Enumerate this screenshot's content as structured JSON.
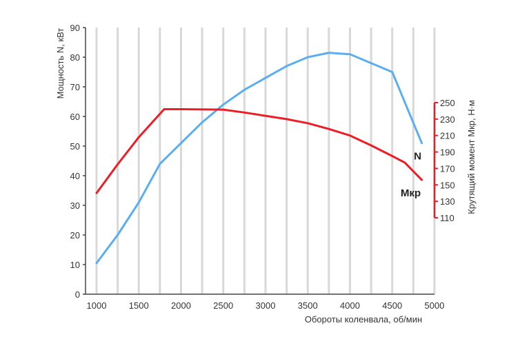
{
  "chart_data": {
    "type": "line",
    "xlabel": "Обороты коленвала, об/мин",
    "ylabel_left": "Мощность N, кВт",
    "ylabel_right": "Крутящий момент Мкр, Н·м",
    "xlim": [
      1000,
      5000
    ],
    "x_ticks": [
      "1000",
      "1500",
      "2000",
      "2500",
      "3000",
      "3500",
      "4000",
      "4500",
      "5000"
    ],
    "ylim_left": [
      0,
      90
    ],
    "y_ticks_left": [
      "0",
      "10",
      "20",
      "30",
      "40",
      "50",
      "60",
      "70",
      "80",
      "90"
    ],
    "ylim_right": [
      110,
      250
    ],
    "y_ticks_right": [
      "110",
      "130",
      "150",
      "170",
      "190",
      "210",
      "230",
      "250"
    ],
    "grid": "vertical",
    "series": [
      {
        "name": "N",
        "axis": "left",
        "color": "#5aaef0",
        "x": [
          1000,
          1250,
          1500,
          1750,
          2000,
          2250,
          2500,
          2750,
          3000,
          3250,
          3500,
          3750,
          4000,
          4250,
          4500,
          4850
        ],
        "values": [
          10.5,
          20,
          31,
          44,
          51,
          58,
          64,
          69,
          73,
          77,
          80,
          81.5,
          81,
          78,
          75,
          51
        ]
      },
      {
        "name": "Мкр",
        "axis": "right",
        "color": "#ee1c24",
        "x": [
          1000,
          1250,
          1500,
          1800,
          2000,
          2500,
          2750,
          3000,
          3250,
          3500,
          3750,
          4000,
          4250,
          4500,
          4650,
          4850
        ],
        "values": [
          140,
          175,
          208,
          242,
          242,
          241.5,
          238,
          234,
          230,
          225,
          218,
          210,
          198,
          185,
          177,
          156
        ]
      }
    ]
  }
}
